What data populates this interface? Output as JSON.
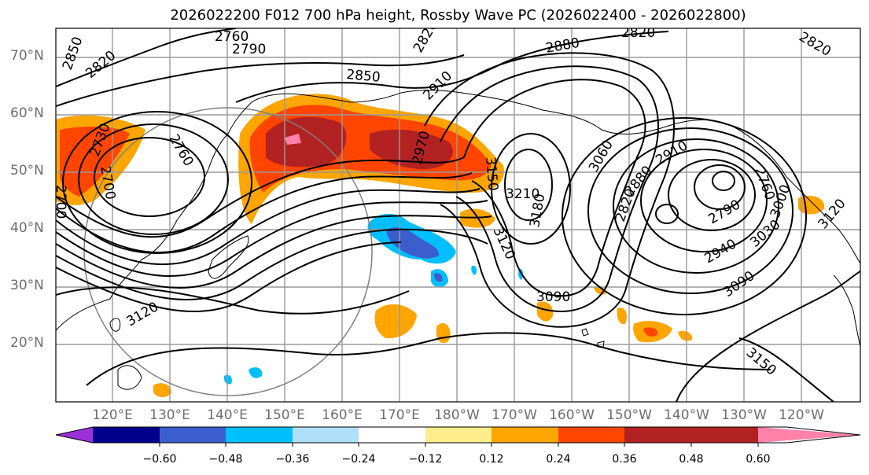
{
  "title": "2026022200 F012 700 hPa height, Rossby Wave PC (2026022400 - 2026022800)",
  "latitude_labels": [
    "70°N",
    "60°N",
    "50°N",
    "40°N",
    "30°N",
    "20°N"
  ],
  "longitude_labels": [
    "120°E",
    "130°E",
    "140°E",
    "150°E",
    "160°E",
    "170°E",
    "180°W",
    "170°W",
    "160°W",
    "150°W",
    "140°W",
    "130°W",
    "120°W"
  ],
  "contour_labels": [
    "2760",
    "2790",
    "2820",
    "2850",
    "2820",
    "2850",
    "2880",
    "2820",
    "2820",
    "2910",
    "2970",
    "2760",
    "2730",
    "2700",
    "3150",
    "3210",
    "3180",
    "3120",
    "3060",
    "3090",
    "2910",
    "2880",
    "2820",
    "2790",
    "2940",
    "3030",
    "3000",
    "3120",
    "3090",
    "3120",
    "3150",
    "2700",
    "2760"
  ],
  "colorbar": {
    "ticks": [
      "−0.60",
      "−0.48",
      "−0.36",
      "−0.24",
      "−0.12",
      "0.12",
      "0.24",
      "0.36",
      "0.48",
      "0.60"
    ],
    "colors": {
      "extend_low": "#9b30d8",
      "c1": "#00008b",
      "c2": "#3a5fcd",
      "c3": "#00bfff",
      "c4": "#b0e0f8",
      "c5": "#ffffff",
      "c6": "#ffec8b",
      "c7": "#ffa500",
      "c8": "#ff4500",
      "c9": "#b22222",
      "extend_high": "#ff82ab"
    }
  }
}
